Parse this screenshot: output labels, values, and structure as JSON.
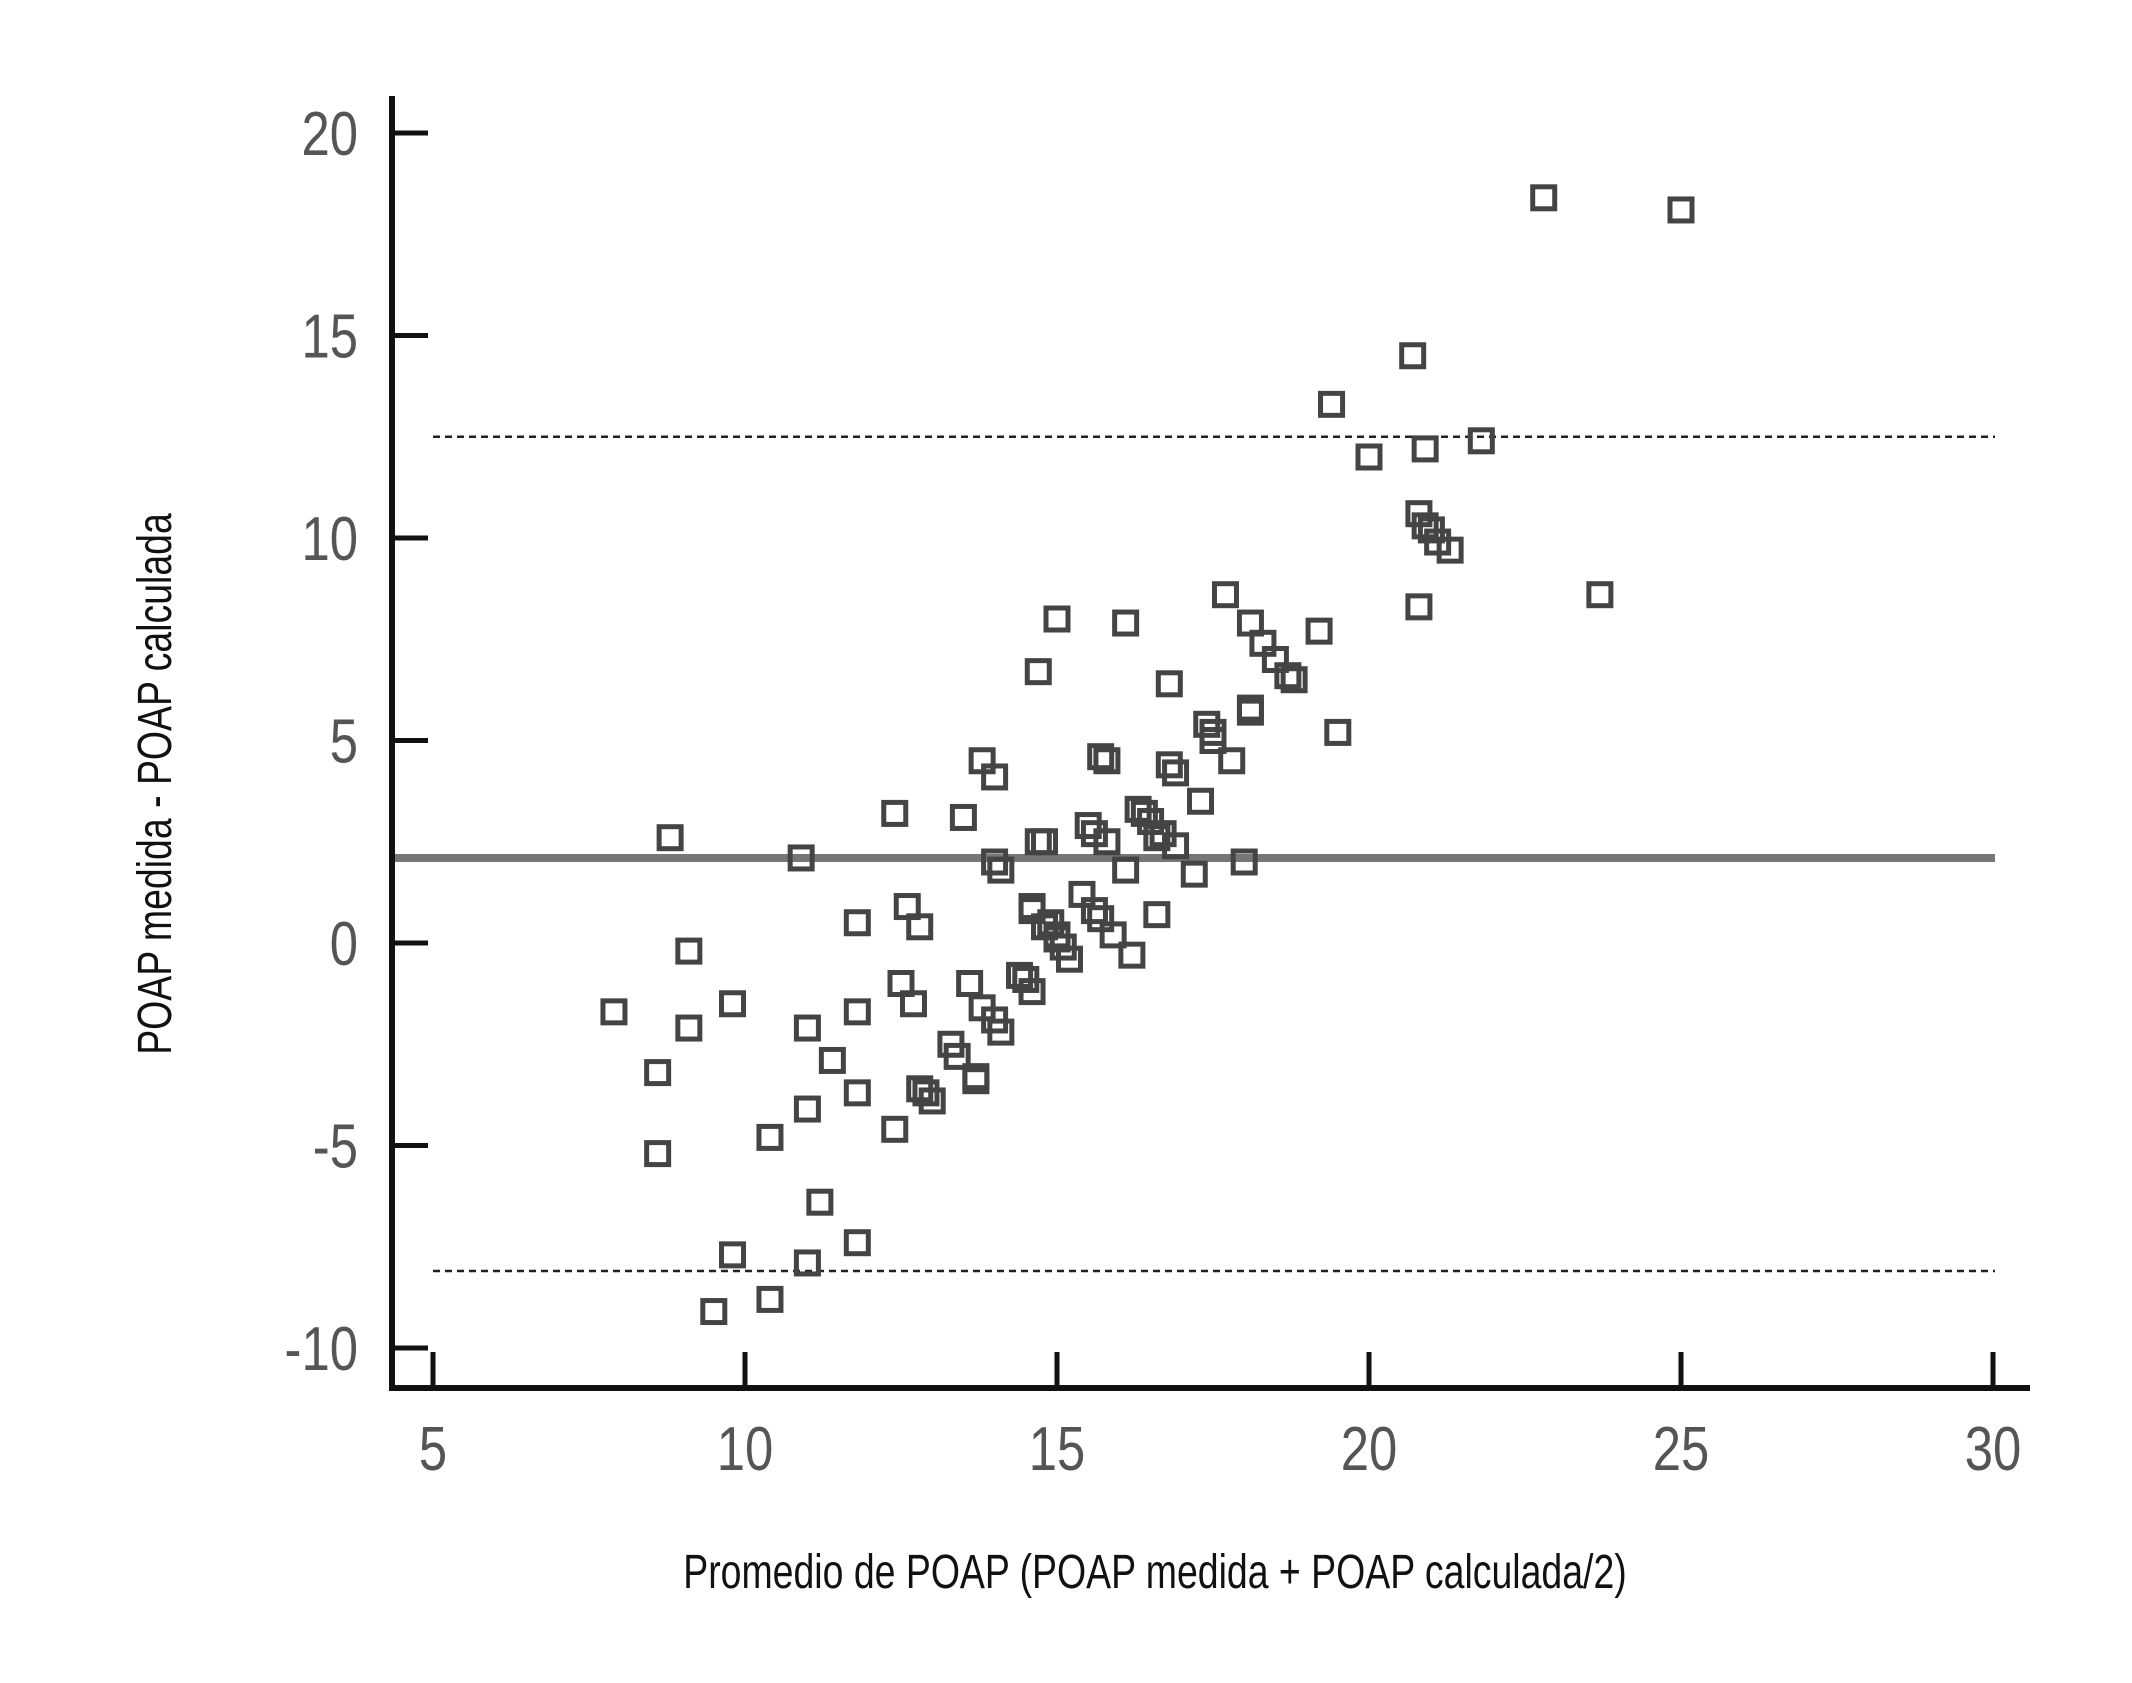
{
  "chart_data": {
    "type": "scatter",
    "title": "",
    "xlabel": "Promedio de POAP (POAP medida + POAP calculada/2)",
    "ylabel": "POAP medida - POAP calculada",
    "xlim": [
      4.5,
      31
    ],
    "ylim": [
      -11,
      21
    ],
    "x_ticks": [
      5,
      10,
      15,
      20,
      25,
      30
    ],
    "x_tick_labels": [
      "5",
      "10",
      "15",
      "20",
      "25",
      "30"
    ],
    "y_ticks": [
      -10,
      -5,
      0,
      5,
      10,
      15,
      20
    ],
    "y_tick_labels": [
      "-10",
      "-5",
      "0",
      "5",
      "10",
      "15",
      "20"
    ],
    "grid": false,
    "legend": "none",
    "marker": "open-square",
    "colors": {
      "axis": "#111111",
      "marker": "#444444",
      "mean_line": "#777777",
      "limit_lines": "#222222",
      "tick_text": "#555555"
    },
    "reference_lines": [
      {
        "type": "mean",
        "y": 2.1,
        "style": "solid"
      },
      {
        "type": "upper-limit",
        "y": 12.5,
        "style": "dashed"
      },
      {
        "type": "lower-limit",
        "y": -8.1,
        "style": "dashed"
      }
    ],
    "points": [
      [
        7.9,
        -1.7
      ],
      [
        8.6,
        -3.2
      ],
      [
        8.6,
        -5.2
      ],
      [
        8.8,
        2.6
      ],
      [
        9.1,
        -0.2
      ],
      [
        9.1,
        -2.1
      ],
      [
        9.5,
        -9.1
      ],
      [
        9.8,
        -1.5
      ],
      [
        9.8,
        -7.7
      ],
      [
        10.4,
        -4.8
      ],
      [
        10.4,
        -8.8
      ],
      [
        10.9,
        2.1
      ],
      [
        11.0,
        -7.9
      ],
      [
        11.0,
        -2.1
      ],
      [
        11.0,
        -4.1
      ],
      [
        11.2,
        -6.4
      ],
      [
        11.4,
        -2.9
      ],
      [
        11.8,
        0.5
      ],
      [
        11.8,
        -1.7
      ],
      [
        11.8,
        -3.7
      ],
      [
        11.8,
        -7.4
      ],
      [
        12.4,
        3.2
      ],
      [
        12.4,
        -4.6
      ],
      [
        12.5,
        -1.0
      ],
      [
        12.6,
        0.9
      ],
      [
        12.7,
        -1.5
      ],
      [
        12.8,
        0.4
      ],
      [
        12.8,
        -3.6
      ],
      [
        12.9,
        -3.7
      ],
      [
        13.0,
        -3.9
      ],
      [
        13.3,
        -2.5
      ],
      [
        13.4,
        -2.8
      ],
      [
        13.5,
        3.1
      ],
      [
        13.6,
        -1.0
      ],
      [
        13.7,
        -3.3
      ],
      [
        13.7,
        -3.4
      ],
      [
        13.8,
        4.5
      ],
      [
        13.8,
        -1.6
      ],
      [
        14.0,
        4.1
      ],
      [
        14.0,
        2.0
      ],
      [
        14.0,
        -1.9
      ],
      [
        14.1,
        1.8
      ],
      [
        14.1,
        -2.2
      ],
      [
        14.4,
        -0.8
      ],
      [
        14.5,
        -0.9
      ],
      [
        14.6,
        0.9
      ],
      [
        14.6,
        0.8
      ],
      [
        14.6,
        -1.2
      ],
      [
        14.7,
        6.7
      ],
      [
        14.7,
        2.5
      ],
      [
        14.8,
        2.5
      ],
      [
        14.8,
        0.4
      ],
      [
        14.9,
        0.5
      ],
      [
        15.0,
        0.1
      ],
      [
        15.0,
        0.2
      ],
      [
        15.0,
        8.0
      ],
      [
        15.1,
        -0.1
      ],
      [
        15.2,
        -0.4
      ],
      [
        15.4,
        1.2
      ],
      [
        15.5,
        2.9
      ],
      [
        15.6,
        2.7
      ],
      [
        15.6,
        0.8
      ],
      [
        15.7,
        0.6
      ],
      [
        15.7,
        4.6
      ],
      [
        15.8,
        4.5
      ],
      [
        15.8,
        2.5
      ],
      [
        15.9,
        0.2
      ],
      [
        16.1,
        7.9
      ],
      [
        16.1,
        1.8
      ],
      [
        16.2,
        -0.3
      ],
      [
        16.3,
        3.3
      ],
      [
        16.4,
        3.2
      ],
      [
        16.5,
        3.0
      ],
      [
        16.6,
        2.6
      ],
      [
        16.6,
        0.7
      ],
      [
        16.7,
        2.7
      ],
      [
        16.8,
        6.4
      ],
      [
        16.8,
        4.4
      ],
      [
        16.9,
        4.2
      ],
      [
        16.9,
        2.4
      ],
      [
        17.2,
        1.7
      ],
      [
        17.3,
        3.5
      ],
      [
        17.4,
        5.4
      ],
      [
        17.5,
        5.2
      ],
      [
        17.5,
        5.0
      ],
      [
        17.7,
        8.6
      ],
      [
        17.8,
        4.5
      ],
      [
        18.0,
        2.0
      ],
      [
        18.1,
        7.9
      ],
      [
        18.1,
        5.8
      ],
      [
        18.1,
        5.7
      ],
      [
        18.3,
        7.4
      ],
      [
        18.5,
        7.0
      ],
      [
        18.7,
        6.6
      ],
      [
        18.8,
        6.5
      ],
      [
        19.2,
        7.7
      ],
      [
        19.4,
        13.3
      ],
      [
        19.5,
        5.2
      ],
      [
        20.0,
        12.0
      ],
      [
        20.7,
        14.5
      ],
      [
        20.8,
        10.6
      ],
      [
        20.8,
        8.3
      ],
      [
        20.9,
        12.2
      ],
      [
        20.9,
        10.3
      ],
      [
        21.0,
        10.2
      ],
      [
        21.1,
        9.9
      ],
      [
        21.3,
        9.7
      ],
      [
        21.8,
        12.4
      ],
      [
        22.8,
        18.4
      ],
      [
        23.7,
        8.6
      ],
      [
        25.0,
        18.1
      ]
    ]
  }
}
